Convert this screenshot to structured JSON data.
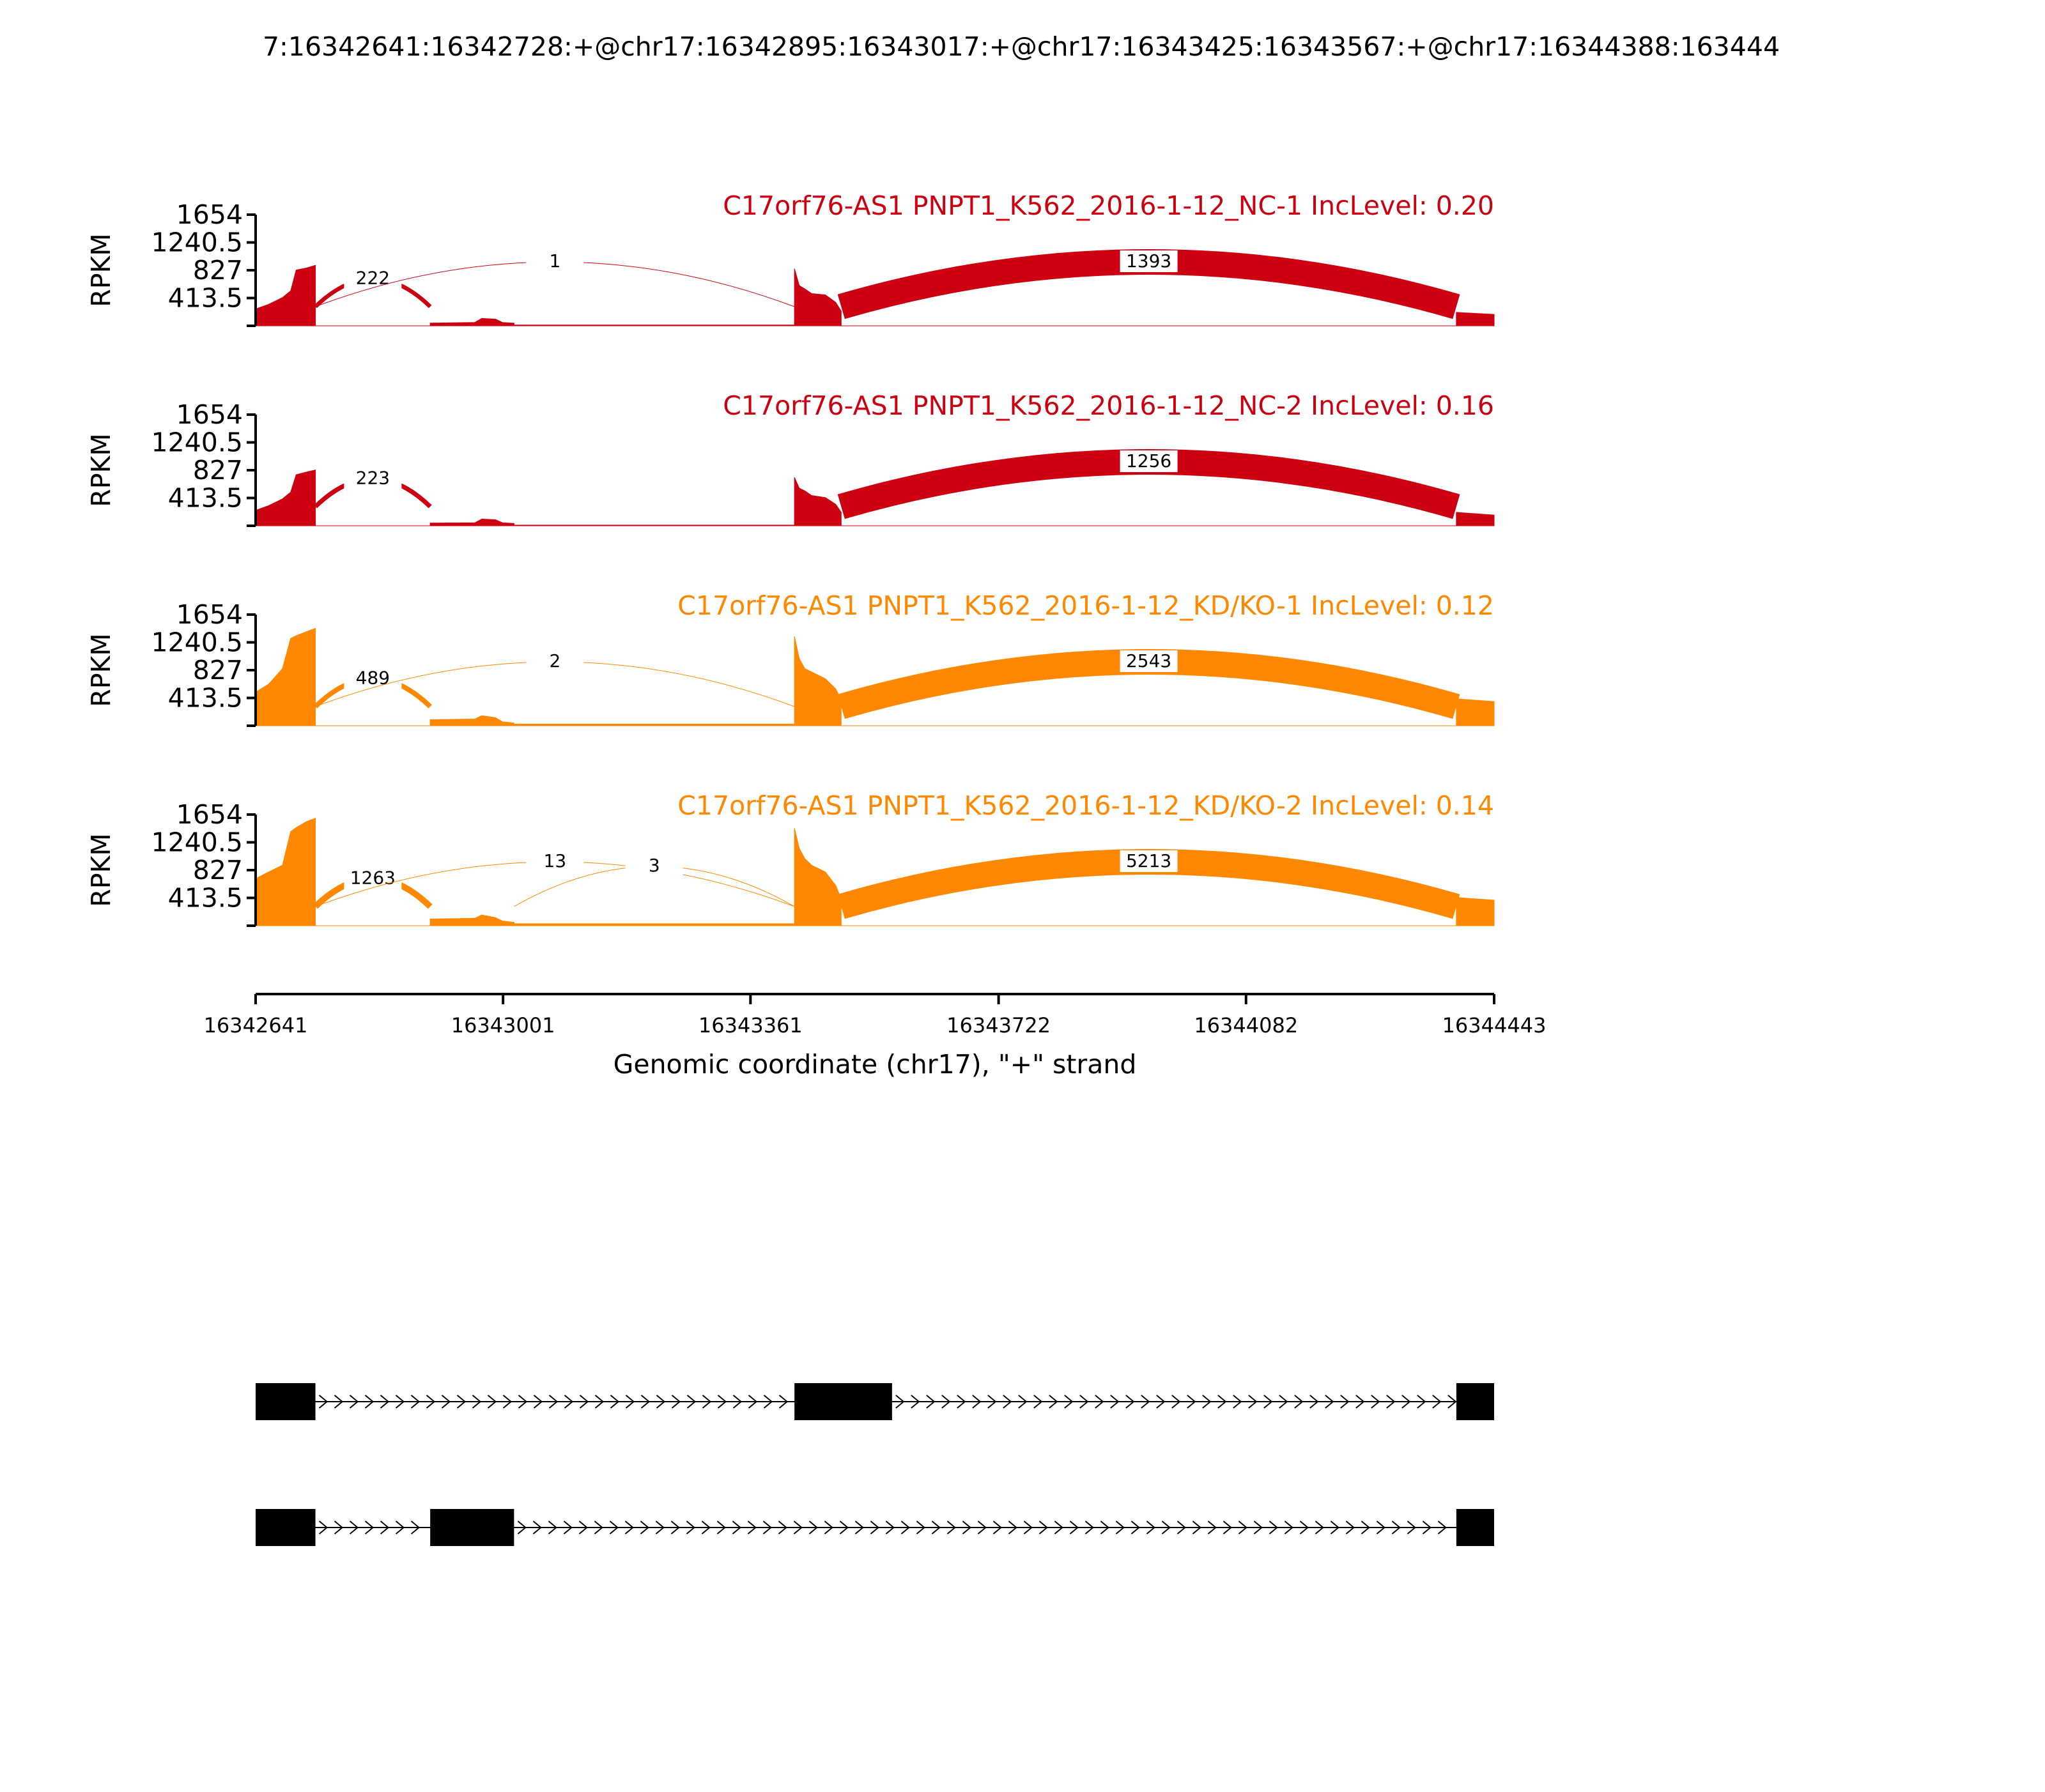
{
  "chart_data": {
    "type": "area",
    "title": "7:16342641:16342728:+@chr17:16342895:16343017:+@chr17:16343425:16343567:+@chr17:16344388:163444",
    "xlabel": "Genomic coordinate (chr17), \"+\" strand",
    "ylabel": "RPKM",
    "xlim": [
      16342641,
      16344443
    ],
    "ylim": [
      0,
      1654
    ],
    "x_ticks": [
      "16342641",
      "16343001",
      "16343361",
      "16343722",
      "16344082",
      "16344443"
    ],
    "x_tick_values": [
      16342641,
      16343001,
      16343361,
      16343722,
      16344082,
      16344443
    ],
    "y_ticks": [
      "1654",
      "1240.5",
      "827",
      "413.5"
    ],
    "y_tick_values": [
      1654,
      1240.5,
      827,
      413.5
    ],
    "colors": {
      "NC": "#cc0011",
      "KD": "#ff8800"
    },
    "samples": [
      {
        "name": "C17orf76-AS1 PNPT1_K562_2016-1-12_NC-1 IncLevel: 0.20",
        "group": "NC",
        "coverage": [
          {
            "start": 16342641,
            "end": 16342728,
            "values": [
              [
                16342641,
                250
              ],
              [
                16342660,
                320
              ],
              [
                16342680,
                420
              ],
              [
                16342692,
                520
              ],
              [
                16342700,
                830
              ],
              [
                16342715,
                860
              ],
              [
                16342728,
                900
              ]
            ]
          },
          {
            "start": 16342728,
            "end": 16342895,
            "values": [
              [
                16342728,
                0
              ],
              [
                16342895,
                0
              ]
            ]
          },
          {
            "start": 16342895,
            "end": 16343017,
            "values": [
              [
                16342895,
                40
              ],
              [
                16342960,
                50
              ],
              [
                16342970,
                110
              ],
              [
                16342990,
                100
              ],
              [
                16343000,
                50
              ],
              [
                16343017,
                40
              ]
            ]
          },
          {
            "start": 16343017,
            "end": 16343425,
            "values": [
              [
                16343017,
                12
              ],
              [
                16343425,
                12
              ]
            ]
          },
          {
            "start": 16343425,
            "end": 16343493,
            "values": [
              [
                16343425,
                850
              ],
              [
                16343432,
                600
              ],
              [
                16343440,
                550
              ],
              [
                16343450,
                480
              ],
              [
                16343470,
                460
              ],
              [
                16343485,
                350
              ],
              [
                16343493,
                220
              ]
            ]
          },
          {
            "start": 16343493,
            "end": 16344388,
            "values": [
              [
                16343493,
                0
              ],
              [
                16344388,
                0
              ]
            ]
          },
          {
            "start": 16344388,
            "end": 16344443,
            "values": [
              [
                16344388,
                200
              ],
              [
                16344443,
                170
              ]
            ]
          }
        ],
        "junctions": [
          {
            "from": 16342728,
            "to": 16342895,
            "count": 222,
            "label": "222"
          },
          {
            "from": 16342728,
            "to": 16343425,
            "count": 1,
            "label": "1"
          },
          {
            "from": 16343493,
            "to": 16344388,
            "count": 1393,
            "label": "1393"
          }
        ]
      },
      {
        "name": "C17orf76-AS1 PNPT1_K562_2016-1-12_NC-2 IncLevel: 0.16",
        "group": "NC",
        "coverage": [
          {
            "start": 16342641,
            "end": 16342728,
            "values": [
              [
                16342641,
                230
              ],
              [
                16342660,
                300
              ],
              [
                16342680,
                400
              ],
              [
                16342692,
                500
              ],
              [
                16342700,
                760
              ],
              [
                16342715,
                800
              ],
              [
                16342728,
                830
              ]
            ]
          },
          {
            "start": 16342728,
            "end": 16342895,
            "values": [
              [
                16342728,
                0
              ],
              [
                16342895,
                0
              ]
            ]
          },
          {
            "start": 16342895,
            "end": 16343017,
            "values": [
              [
                16342895,
                40
              ],
              [
                16342960,
                45
              ],
              [
                16342970,
                100
              ],
              [
                16342990,
                90
              ],
              [
                16343000,
                45
              ],
              [
                16343017,
                35
              ]
            ]
          },
          {
            "start": 16343017,
            "end": 16343425,
            "values": [
              [
                16343017,
                10
              ],
              [
                16343425,
                10
              ]
            ]
          },
          {
            "start": 16343425,
            "end": 16343493,
            "values": [
              [
                16343425,
                720
              ],
              [
                16343432,
                560
              ],
              [
                16343440,
                520
              ],
              [
                16343450,
                450
              ],
              [
                16343470,
                420
              ],
              [
                16343485,
                320
              ],
              [
                16343493,
                200
              ]
            ]
          },
          {
            "start": 16343493,
            "end": 16344388,
            "values": [
              [
                16343493,
                0
              ],
              [
                16344388,
                0
              ]
            ]
          },
          {
            "start": 16344388,
            "end": 16344443,
            "values": [
              [
                16344388,
                200
              ],
              [
                16344443,
                160
              ]
            ]
          }
        ],
        "junctions": [
          {
            "from": 16342728,
            "to": 16342895,
            "count": 223,
            "label": "223"
          },
          {
            "from": 16343493,
            "to": 16344388,
            "count": 1256,
            "label": "1256"
          }
        ]
      },
      {
        "name": "C17orf76-AS1 PNPT1_K562_2016-1-12_KD/KO-1 IncLevel: 0.12",
        "group": "KD",
        "coverage": [
          {
            "start": 16342641,
            "end": 16342728,
            "values": [
              [
                16342641,
                500
              ],
              [
                16342660,
                620
              ],
              [
                16342680,
                850
              ],
              [
                16342692,
                1300
              ],
              [
                16342700,
                1340
              ],
              [
                16342715,
                1400
              ],
              [
                16342728,
                1450
              ]
            ]
          },
          {
            "start": 16342728,
            "end": 16342895,
            "values": [
              [
                16342728,
                0
              ],
              [
                16342895,
                0
              ]
            ]
          },
          {
            "start": 16342895,
            "end": 16343017,
            "values": [
              [
                16342895,
                90
              ],
              [
                16342960,
                100
              ],
              [
                16342970,
                150
              ],
              [
                16342990,
                120
              ],
              [
                16343000,
                60
              ],
              [
                16343017,
                40
              ]
            ]
          },
          {
            "start": 16343017,
            "end": 16343425,
            "values": [
              [
                16343017,
                25
              ],
              [
                16343425,
                25
              ]
            ]
          },
          {
            "start": 16343425,
            "end": 16343493,
            "values": [
              [
                16343425,
                1330
              ],
              [
                16343432,
                1000
              ],
              [
                16343440,
                850
              ],
              [
                16343450,
                800
              ],
              [
                16343470,
                700
              ],
              [
                16343485,
                550
              ],
              [
                16343493,
                380
              ]
            ]
          },
          {
            "start": 16343493,
            "end": 16344388,
            "values": [
              [
                16343493,
                0
              ],
              [
                16344388,
                0
              ]
            ]
          },
          {
            "start": 16344388,
            "end": 16344443,
            "values": [
              [
                16344388,
                400
              ],
              [
                16344443,
                360
              ]
            ]
          }
        ],
        "junctions": [
          {
            "from": 16342728,
            "to": 16342895,
            "count": 489,
            "label": "489"
          },
          {
            "from": 16342728,
            "to": 16343425,
            "count": 2,
            "label": "2"
          },
          {
            "from": 16343493,
            "to": 16344388,
            "count": 2543,
            "label": "2543"
          }
        ]
      },
      {
        "name": "C17orf76-AS1 PNPT1_K562_2016-1-12_KD/KO-2 IncLevel: 0.14",
        "group": "KD",
        "coverage": [
          {
            "start": 16342641,
            "end": 16342728,
            "values": [
              [
                16342641,
                700
              ],
              [
                16342660,
                800
              ],
              [
                16342680,
                900
              ],
              [
                16342692,
                1400
              ],
              [
                16342700,
                1460
              ],
              [
                16342715,
                1550
              ],
              [
                16342728,
                1600
              ]
            ]
          },
          {
            "start": 16342728,
            "end": 16342895,
            "values": [
              [
                16342728,
                0
              ],
              [
                16342895,
                0
              ]
            ]
          },
          {
            "start": 16342895,
            "end": 16343017,
            "values": [
              [
                16342895,
                100
              ],
              [
                16342960,
                110
              ],
              [
                16342970,
                160
              ],
              [
                16342990,
                120
              ],
              [
                16343000,
                70
              ],
              [
                16343017,
                50
              ]
            ]
          },
          {
            "start": 16343017,
            "end": 16343425,
            "values": [
              [
                16343017,
                30
              ],
              [
                16343425,
                30
              ]
            ]
          },
          {
            "start": 16343425,
            "end": 16343493,
            "values": [
              [
                16343425,
                1450
              ],
              [
                16343432,
                1150
              ],
              [
                16343440,
                1000
              ],
              [
                16343450,
                900
              ],
              [
                16343470,
                800
              ],
              [
                16343485,
                600
              ],
              [
                16343493,
                400
              ]
            ]
          },
          {
            "start": 16343493,
            "end": 16344388,
            "values": [
              [
                16343493,
                0
              ],
              [
                16344388,
                0
              ]
            ]
          },
          {
            "start": 16344388,
            "end": 16344443,
            "values": [
              [
                16344388,
                420
              ],
              [
                16344443,
                380
              ]
            ]
          }
        ],
        "junctions": [
          {
            "from": 16342728,
            "to": 16342895,
            "count": 1263,
            "label": "1263"
          },
          {
            "from": 16342728,
            "to": 16343425,
            "count": 13,
            "label": "13"
          },
          {
            "from": 16343017,
            "to": 16343425,
            "count": 3,
            "label": "3"
          },
          {
            "from": 16343493,
            "to": 16344388,
            "count": 5213,
            "label": "5213"
          }
        ]
      }
    ],
    "isoforms": [
      {
        "exons": [
          [
            16342641,
            16342728
          ],
          [
            16343425,
            16343567
          ],
          [
            16344388,
            16344443
          ]
        ]
      },
      {
        "exons": [
          [
            16342641,
            16342728
          ],
          [
            16342895,
            16343017
          ],
          [
            16344388,
            16344443
          ]
        ]
      }
    ]
  }
}
